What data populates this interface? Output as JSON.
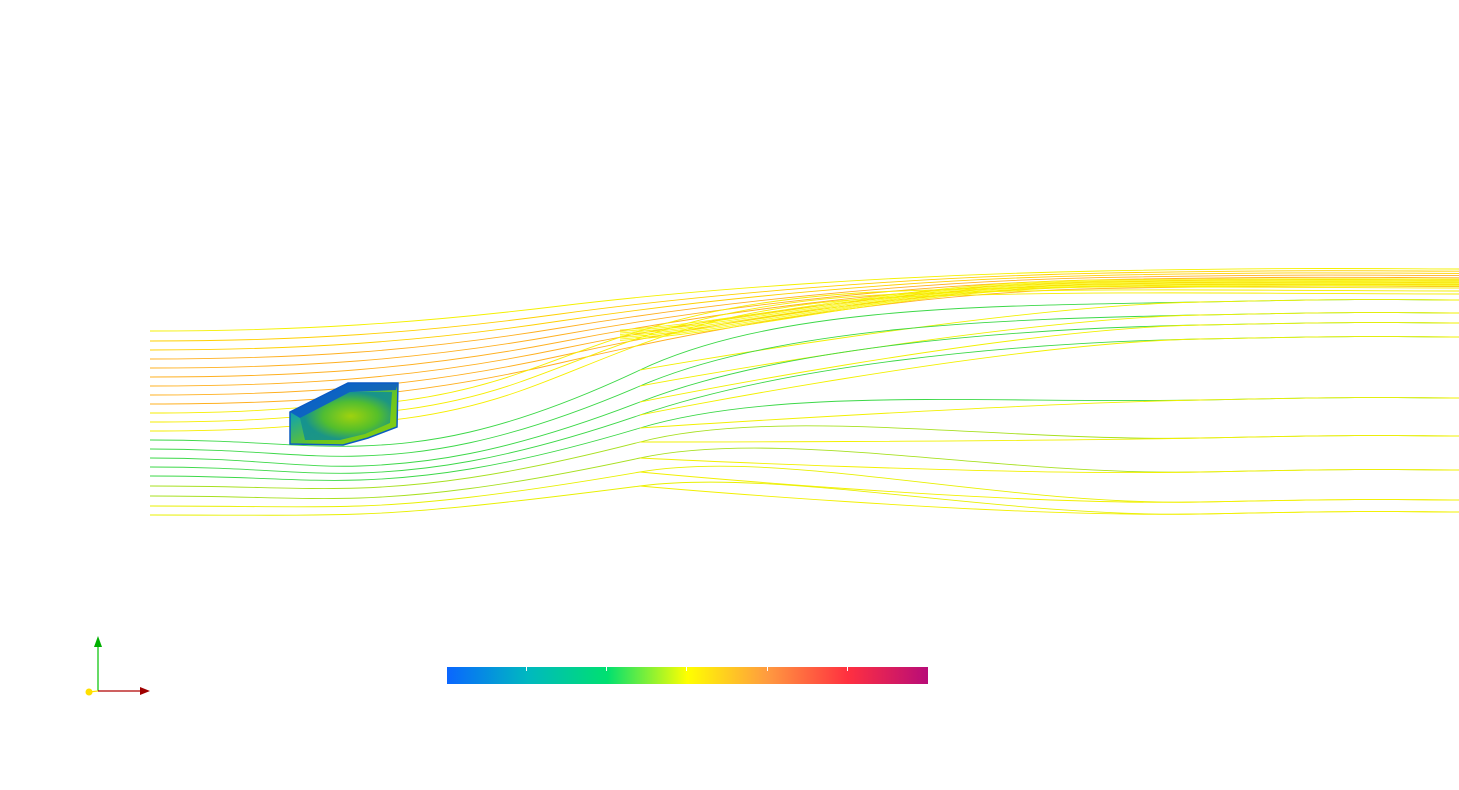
{
  "scene": {
    "background": "#ffffff",
    "streamline_base_color": "#ffff00",
    "body_fill_colors": [
      "#0a6bd8",
      "#12a88a",
      "#36c24a",
      "#8cd012"
    ]
  },
  "colorbar": {
    "stops": [
      "#0a66ff",
      "#00b8c0",
      "#00e070",
      "#ffff00",
      "#ff9a40",
      "#ff3040",
      "#b80c78"
    ],
    "tick_count": 5
  },
  "axes_triad": {
    "x_color": "#b00000",
    "y_color": "#00c000",
    "z_color": "#ffe000"
  }
}
